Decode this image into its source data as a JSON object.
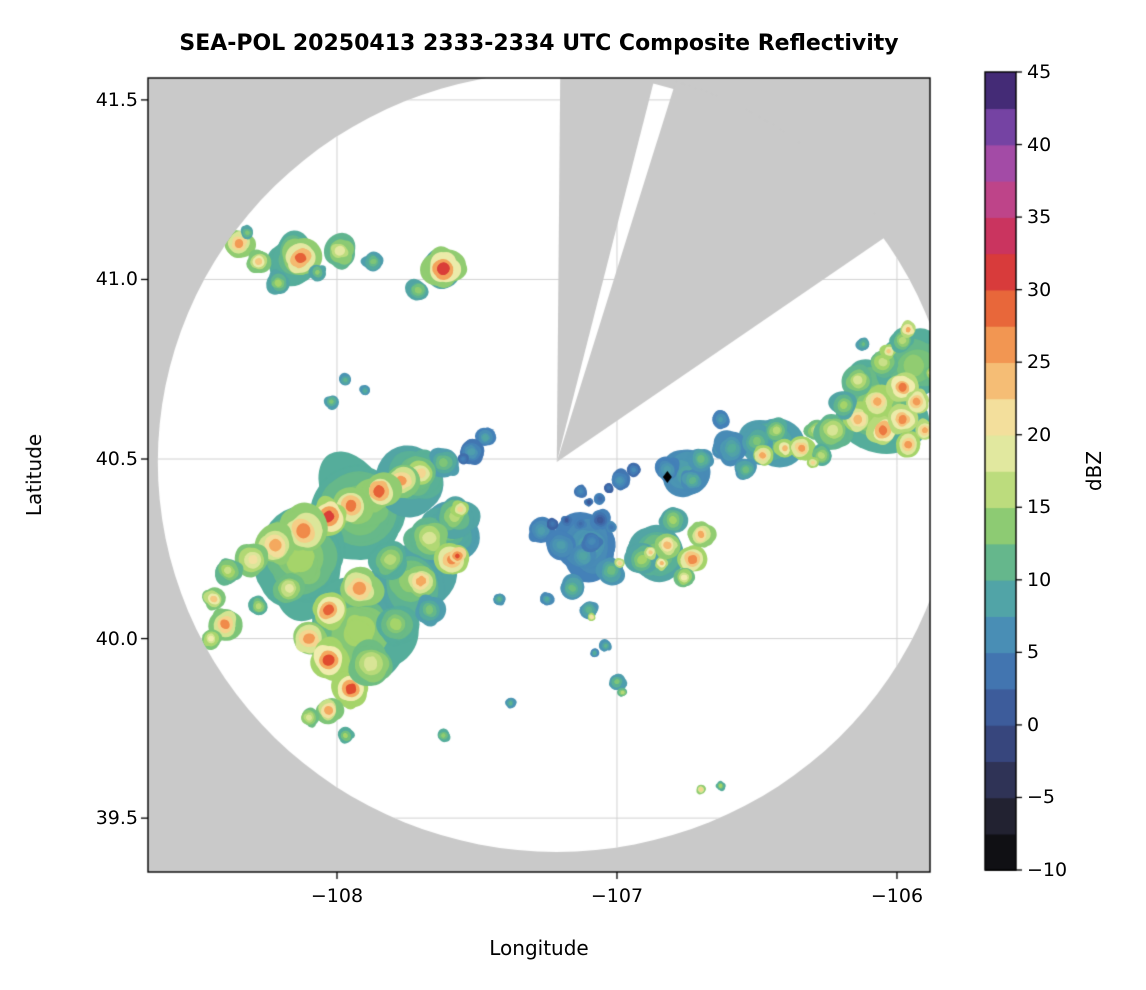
{
  "title": "SEA-POL 20250413 2333-2334 UTC Composite Reflectivity",
  "chart_data": {
    "type": "heatmap",
    "subtype": "radar_ppi_composite_reflectivity_map",
    "title": "SEA-POL 20250413 2333-2334 UTC Composite Reflectivity",
    "xlabel": "Longitude",
    "ylabel": "Latitude",
    "xlim": [
      -108.675,
      -105.882
    ],
    "ylim": [
      39.35,
      41.561
    ],
    "grid": true,
    "xticks": [
      {
        "v": -108,
        "label": "−108"
      },
      {
        "v": -107,
        "label": "−107"
      },
      {
        "v": -106,
        "label": "−106"
      }
    ],
    "yticks": [
      {
        "v": 41.5,
        "label": "41.5"
      },
      {
        "v": 41.0,
        "label": "41.0"
      },
      {
        "v": 40.5,
        "label": "40.5"
      },
      {
        "v": 40.0,
        "label": "40.0"
      },
      {
        "v": 39.5,
        "label": "39.5"
      }
    ],
    "colors": {
      "masked": "#c9c9c9",
      "clear": "#ffffff",
      "grid": "#d2d2d2",
      "frame": "#000000",
      "marker": "#000000"
    },
    "radar": {
      "center_lon": -107.215,
      "center_lat": 40.492,
      "range_lon_deg": 1.425,
      "range_lat_deg": 1.086,
      "blocked_sectors_azimuth_deg": [
        [
          0.5,
          14
        ],
        [
          17,
          55
        ]
      ]
    },
    "site_marker": {
      "lon": -106.82,
      "lat": 40.45,
      "shape": "diamond"
    },
    "colorbar": {
      "label": "dBZ",
      "min": -10,
      "max": 45,
      "ticks": [
        {
          "v": 45,
          "label": "45"
        },
        {
          "v": 40,
          "label": "40"
        },
        {
          "v": 35,
          "label": "35"
        },
        {
          "v": 30,
          "label": "30"
        },
        {
          "v": 25,
          "label": "25"
        },
        {
          "v": 20,
          "label": "20"
        },
        {
          "v": 15,
          "label": "15"
        },
        {
          "v": 10,
          "label": "10"
        },
        {
          "v": 5,
          "label": "5"
        },
        {
          "v": 0,
          "label": "0"
        },
        {
          "v": -5,
          "label": "−5"
        },
        {
          "v": -10,
          "label": "−10"
        }
      ],
      "stops": [
        [
          -10,
          "#060606"
        ],
        [
          -7.5,
          "#1a1a21"
        ],
        [
          -5,
          "#2a2940"
        ],
        [
          -2.5,
          "#333d6b"
        ],
        [
          0,
          "#3b4f8e"
        ],
        [
          2.5,
          "#3f68a8"
        ],
        [
          5,
          "#4481b8"
        ],
        [
          7.5,
          "#4d9ab2"
        ],
        [
          10,
          "#55ad9b"
        ],
        [
          12.5,
          "#74c17c"
        ],
        [
          15,
          "#a5d46a"
        ],
        [
          17.5,
          "#d2e390"
        ],
        [
          20,
          "#f0ecae"
        ],
        [
          22.5,
          "#f5d18a"
        ],
        [
          25,
          "#f4a95f"
        ],
        [
          27.5,
          "#ef8345"
        ],
        [
          30,
          "#e04b2e"
        ],
        [
          32.5,
          "#d02a47"
        ],
        [
          35,
          "#c33d77"
        ],
        [
          37.5,
          "#b84a9b"
        ],
        [
          40,
          "#8e4bb0"
        ],
        [
          42.5,
          "#5c3a96"
        ],
        [
          45,
          "#2c1c55"
        ]
      ]
    },
    "echoes_dbz": [
      [
        -107.92,
        40.36,
        0.155,
        14,
        10
      ],
      [
        -108.13,
        40.22,
        0.15,
        15,
        10
      ],
      [
        -107.92,
        40.02,
        0.165,
        15,
        10
      ],
      [
        -107.74,
        40.16,
        0.12,
        14,
        9
      ],
      [
        -107.6,
        40.3,
        0.1,
        12,
        8
      ],
      [
        -107.72,
        40.45,
        0.11,
        13,
        9
      ],
      [
        -107.1,
        40.26,
        0.1,
        8,
        5
      ],
      [
        -106.86,
        40.24,
        0.095,
        13,
        9
      ],
      [
        -106.06,
        40.64,
        0.14,
        15,
        10
      ],
      [
        -105.94,
        40.76,
        0.105,
        14,
        10
      ],
      [
        -106.45,
        40.55,
        0.085,
        12,
        8
      ],
      [
        -106.75,
        40.46,
        0.075,
        9,
        6
      ],
      [
        -108.15,
        41.06,
        0.075,
        14,
        10
      ],
      [
        -107.63,
        41.03,
        0.06,
        12,
        9
      ],
      [
        -108.35,
        41.1,
        0.045,
        26,
        14
      ],
      [
        -108.28,
        41.05,
        0.035,
        23,
        13
      ],
      [
        -108.13,
        41.06,
        0.06,
        29,
        14
      ],
      [
        -108.21,
        40.99,
        0.035,
        15,
        9
      ],
      [
        -107.99,
        41.08,
        0.05,
        19,
        11
      ],
      [
        -107.87,
        41.05,
        0.03,
        13,
        8
      ],
      [
        -107.62,
        41.03,
        0.062,
        31,
        14
      ],
      [
        -107.71,
        40.97,
        0.035,
        14,
        9
      ],
      [
        -108.32,
        41.13,
        0.022,
        13,
        9
      ],
      [
        -108.07,
        41.02,
        0.025,
        14,
        9
      ],
      [
        -107.97,
        40.72,
        0.02,
        11,
        7
      ],
      [
        -108.02,
        40.66,
        0.022,
        13,
        8
      ],
      [
        -107.9,
        40.69,
        0.016,
        10,
        7
      ],
      [
        -107.47,
        40.56,
        0.03,
        9,
        5
      ],
      [
        -107.52,
        40.52,
        0.04,
        8,
        4
      ],
      [
        -107.55,
        40.5,
        0.018,
        5,
        3
      ],
      [
        -107.62,
        40.49,
        0.045,
        13,
        8
      ],
      [
        -107.7,
        40.46,
        0.05,
        22,
        12
      ],
      [
        -107.77,
        40.44,
        0.055,
        26,
        13
      ],
      [
        -107.85,
        40.41,
        0.062,
        29,
        14
      ],
      [
        -107.95,
        40.37,
        0.058,
        28,
        14
      ],
      [
        -108.03,
        40.34,
        0.058,
        31,
        15
      ],
      [
        -108.12,
        40.3,
        0.072,
        27,
        14
      ],
      [
        -108.22,
        40.26,
        0.062,
        25,
        14
      ],
      [
        -108.3,
        40.22,
        0.05,
        21,
        13
      ],
      [
        -108.39,
        40.19,
        0.04,
        17,
        11
      ],
      [
        -108.44,
        40.11,
        0.035,
        23,
        13
      ],
      [
        -108.4,
        40.04,
        0.05,
        27,
        13
      ],
      [
        -108.45,
        40.0,
        0.03,
        20,
        13
      ],
      [
        -107.58,
        40.34,
        0.062,
        16,
        9
      ],
      [
        -107.56,
        40.36,
        0.028,
        22,
        15
      ],
      [
        -107.67,
        40.28,
        0.068,
        18,
        11
      ],
      [
        -107.59,
        40.22,
        0.052,
        27,
        15
      ],
      [
        -107.57,
        40.23,
        0.024,
        30,
        22
      ],
      [
        -107.7,
        40.16,
        0.05,
        25,
        14
      ],
      [
        -107.81,
        40.22,
        0.058,
        16,
        10
      ],
      [
        -107.92,
        40.14,
        0.068,
        26,
        14
      ],
      [
        -108.03,
        40.08,
        0.055,
        29,
        15
      ],
      [
        -108.1,
        40.0,
        0.055,
        26,
        14
      ],
      [
        -108.03,
        39.94,
        0.058,
        30,
        15
      ],
      [
        -107.95,
        39.86,
        0.055,
        30,
        15
      ],
      [
        -108.03,
        39.8,
        0.045,
        25,
        13
      ],
      [
        -107.88,
        39.93,
        0.072,
        18,
        12
      ],
      [
        -107.79,
        40.04,
        0.062,
        15,
        10
      ],
      [
        -107.67,
        40.08,
        0.045,
        13,
        8
      ],
      [
        -108.1,
        39.78,
        0.03,
        18,
        12
      ],
      [
        -107.97,
        39.73,
        0.025,
        15,
        10
      ],
      [
        -107.62,
        39.73,
        0.02,
        14,
        10
      ],
      [
        -107.42,
        40.11,
        0.02,
        11,
        7
      ],
      [
        -108.17,
        40.14,
        0.045,
        19,
        12
      ],
      [
        -108.28,
        40.09,
        0.03,
        16,
        10
      ],
      [
        -107.27,
        40.3,
        0.038,
        8,
        5
      ],
      [
        -107.23,
        40.32,
        0.018,
        4,
        2
      ],
      [
        -107.18,
        40.33,
        0.016,
        1,
        4
      ],
      [
        -107.13,
        40.32,
        0.018,
        3,
        5
      ],
      [
        -107.06,
        40.33,
        0.03,
        1,
        5
      ],
      [
        -107.02,
        40.31,
        0.018,
        4,
        6
      ],
      [
        -107.2,
        40.26,
        0.045,
        8,
        5
      ],
      [
        -107.12,
        40.23,
        0.04,
        9,
        6
      ],
      [
        -107.09,
        40.27,
        0.03,
        6,
        4
      ],
      [
        -107.02,
        40.19,
        0.045,
        12,
        7
      ],
      [
        -106.99,
        40.21,
        0.015,
        22,
        16
      ],
      [
        -107.16,
        40.14,
        0.038,
        12,
        7
      ],
      [
        -107.25,
        40.11,
        0.02,
        10,
        6
      ],
      [
        -107.1,
        40.08,
        0.03,
        11,
        7
      ],
      [
        -107.09,
        40.06,
        0.012,
        21,
        15
      ],
      [
        -106.91,
        40.22,
        0.048,
        15,
        9
      ],
      [
        -106.88,
        40.24,
        0.02,
        23,
        16
      ],
      [
        -106.84,
        40.21,
        0.02,
        24,
        16
      ],
      [
        -106.82,
        40.26,
        0.038,
        24,
        14
      ],
      [
        -106.73,
        40.22,
        0.045,
        27,
        15
      ],
      [
        -106.7,
        40.29,
        0.038,
        25,
        14
      ],
      [
        -106.8,
        40.33,
        0.042,
        15,
        9
      ],
      [
        -106.76,
        40.17,
        0.03,
        20,
        12
      ],
      [
        -106.99,
        40.44,
        0.03,
        7,
        4
      ],
      [
        -107.03,
        40.42,
        0.015,
        4,
        2
      ],
      [
        -106.94,
        40.47,
        0.022,
        6,
        3
      ],
      [
        -106.82,
        40.47,
        0.038,
        8,
        5
      ],
      [
        -106.73,
        40.44,
        0.038,
        11,
        6
      ],
      [
        -106.7,
        40.5,
        0.038,
        12,
        7
      ],
      [
        -107.06,
        40.39,
        0.018,
        3,
        5
      ],
      [
        -107.1,
        40.38,
        0.012,
        1,
        4
      ],
      [
        -107.13,
        40.41,
        0.02,
        6,
        4
      ],
      [
        -106.63,
        40.53,
        0.03,
        10,
        6
      ],
      [
        -106.59,
        40.53,
        0.048,
        10,
        6
      ],
      [
        -106.5,
        40.55,
        0.045,
        13,
        8
      ],
      [
        -106.48,
        40.51,
        0.032,
        25,
        15
      ],
      [
        -106.43,
        40.58,
        0.038,
        16,
        10
      ],
      [
        -106.4,
        40.53,
        0.028,
        24,
        15
      ],
      [
        -106.34,
        40.53,
        0.038,
        26,
        15
      ],
      [
        -106.54,
        40.47,
        0.035,
        12,
        7
      ],
      [
        -106.63,
        40.61,
        0.028,
        8,
        5
      ],
      [
        -106.29,
        40.58,
        0.03,
        18,
        12
      ],
      [
        -106.23,
        40.58,
        0.055,
        18,
        11
      ],
      [
        -106.14,
        40.61,
        0.045,
        24,
        15
      ],
      [
        -106.05,
        40.58,
        0.05,
        28,
        16
      ],
      [
        -105.98,
        40.61,
        0.045,
        27,
        16
      ],
      [
        -105.96,
        40.54,
        0.038,
        26,
        15
      ],
      [
        -106.07,
        40.66,
        0.045,
        25,
        15
      ],
      [
        -105.98,
        40.7,
        0.045,
        28,
        16
      ],
      [
        -105.93,
        40.66,
        0.038,
        26,
        16
      ],
      [
        -106.14,
        40.72,
        0.048,
        18,
        11
      ],
      [
        -106.05,
        40.77,
        0.045,
        17,
        11
      ],
      [
        -106.03,
        40.8,
        0.022,
        23,
        15
      ],
      [
        -105.98,
        40.83,
        0.038,
        16,
        10
      ],
      [
        -105.96,
        40.86,
        0.025,
        25,
        16
      ],
      [
        -106.12,
        40.82,
        0.02,
        12,
        8
      ],
      [
        -106.19,
        40.65,
        0.042,
        15,
        9
      ],
      [
        -106.27,
        40.51,
        0.035,
        16,
        10
      ],
      [
        -106.3,
        40.49,
        0.018,
        22,
        15
      ],
      [
        -105.9,
        40.58,
        0.03,
        25,
        16
      ],
      [
        -105.88,
        40.74,
        0.022,
        18,
        12
      ],
      [
        -107.04,
        39.98,
        0.018,
        11,
        7
      ],
      [
        -107.08,
        39.96,
        0.014,
        10,
        6
      ],
      [
        -107.0,
        39.88,
        0.025,
        13,
        8
      ],
      [
        -106.98,
        39.85,
        0.015,
        16,
        11
      ],
      [
        -106.7,
        39.58,
        0.014,
        22,
        14
      ],
      [
        -106.63,
        39.59,
        0.014,
        15,
        10
      ],
      [
        -107.38,
        39.82,
        0.016,
        11,
        7
      ]
    ]
  }
}
